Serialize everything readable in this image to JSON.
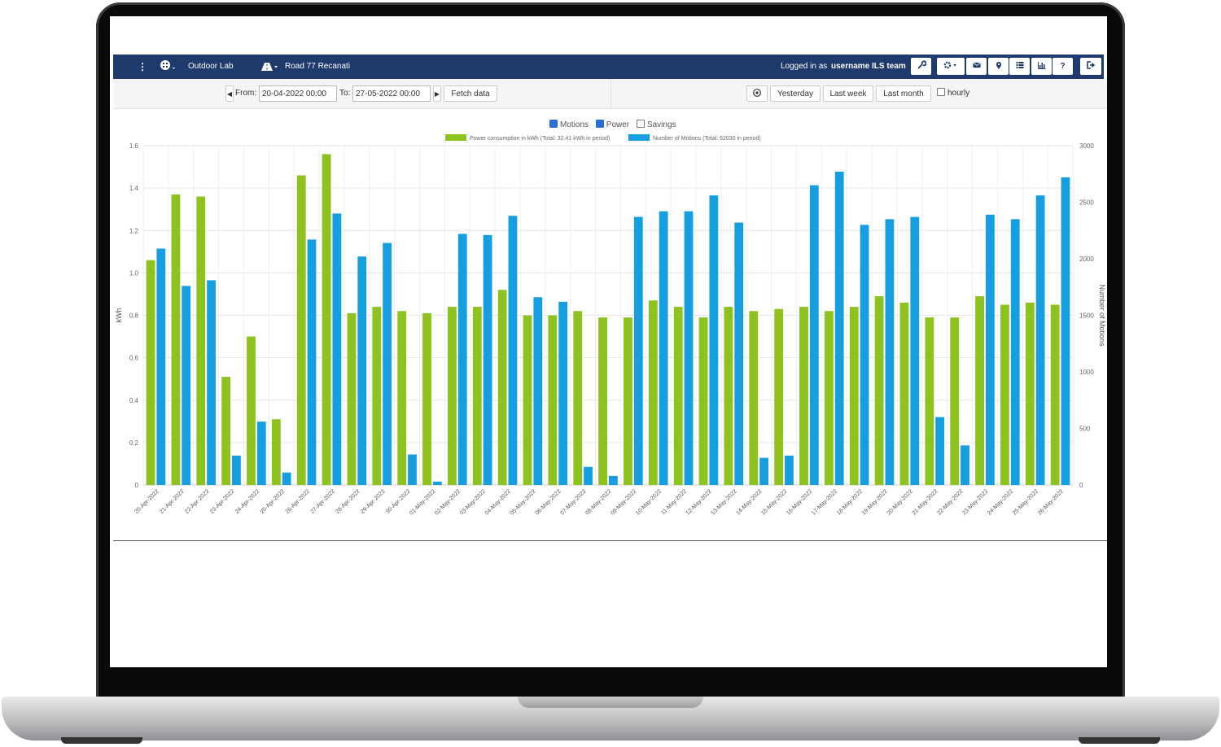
{
  "navbar": {
    "menu_icon": "vertical-dots-icon",
    "location_icon": "building-icon",
    "location": "Outdoor Lab",
    "road_icon": "road-icon",
    "road": "Road 77 Recanati",
    "logged_prefix": "Logged in as",
    "username": "username ILS team",
    "tools": [
      "wrench-icon",
      "gear-icon",
      "mail-icon",
      "map-pin-icon",
      "list-icon",
      "bar-chart-icon",
      "help-icon"
    ],
    "help_label": "?",
    "logout_icon": "logout-icon"
  },
  "controls": {
    "from_label": "From:",
    "from_value": "20-04-2022 00:00",
    "to_label": "To:",
    "to_value": "27-05-2022 00:00",
    "fetch": "Fetch data",
    "yesterday": "Yesterday",
    "last_week": "Last week",
    "last_month": "Last month",
    "hourly": "hourly"
  },
  "toggles": [
    {
      "label": "Motions",
      "checked": true
    },
    {
      "label": "Power",
      "checked": true
    },
    {
      "label": "Savings",
      "checked": false
    }
  ],
  "chart_data": {
    "type": "bar",
    "categories": [
      "20-Apr-2022",
      "21-Apr-2022",
      "22-Apr-2022",
      "23-Apr-2022",
      "24-Apr-2022",
      "25-Apr-2022",
      "26-Apr-2022",
      "27-Apr-2022",
      "28-Apr-2022",
      "29-Apr-2022",
      "30-Apr-2022",
      "01-May-2022",
      "02-May-2022",
      "03-May-2022",
      "04-May-2022",
      "05-May-2022",
      "06-May-2022",
      "07-May-2022",
      "08-May-2022",
      "09-May-2022",
      "10-May-2022",
      "11-May-2022",
      "12-May-2022",
      "13-May-2022",
      "14-May-2022",
      "15-May-2022",
      "16-May-2022",
      "17-May-2022",
      "18-May-2022",
      "19-May-2022",
      "20-May-2022",
      "21-May-2022",
      "22-May-2022",
      "23-May-2022",
      "24-May-2022",
      "25-May-2022",
      "26-May-2022"
    ],
    "series": [
      {
        "name": "Power consumption in kWh (Total: 32.41 kWh in period)",
        "axis": "left",
        "color": "#8dc21f",
        "values": [
          1.06,
          1.37,
          1.36,
          0.51,
          0.7,
          0.31,
          1.46,
          1.56,
          0.81,
          0.84,
          0.82,
          0.81,
          0.84,
          0.84,
          0.92,
          0.8,
          0.8,
          0.82,
          0.79,
          0.79,
          0.87,
          0.84,
          0.79,
          0.84,
          0.82,
          0.83,
          0.84,
          0.82,
          0.84,
          0.89,
          0.86,
          0.79,
          0.79,
          0.89,
          0.85,
          0.86,
          0.85
        ]
      },
      {
        "name": "Number of Motions (Total: 62030 in period)",
        "axis": "right",
        "color": "#169fe0",
        "values": [
          2090,
          1760,
          1810,
          260,
          560,
          110,
          2170,
          2400,
          2020,
          2140,
          270,
          30,
          2220,
          2210,
          2380,
          1660,
          1620,
          160,
          80,
          2370,
          2420,
          2420,
          2560,
          2320,
          240,
          260,
          2650,
          2770,
          2300,
          2350,
          2370,
          600,
          350,
          2390,
          2350,
          2560,
          2720
        ]
      }
    ],
    "ylabel": "kWh",
    "ylim": [
      0,
      1.6
    ],
    "yticks": [
      "0",
      "0.2",
      "0.4",
      "0.6",
      "0.8",
      "1.0",
      "1.2",
      "1.4",
      "1.6"
    ],
    "y2label": "Number of Motions",
    "y2lim": [
      0,
      3000
    ],
    "y2ticks": [
      "0",
      "500",
      "1000",
      "1500",
      "2000",
      "2500",
      "3000"
    ],
    "grid": true,
    "legend_position": "top-center"
  }
}
